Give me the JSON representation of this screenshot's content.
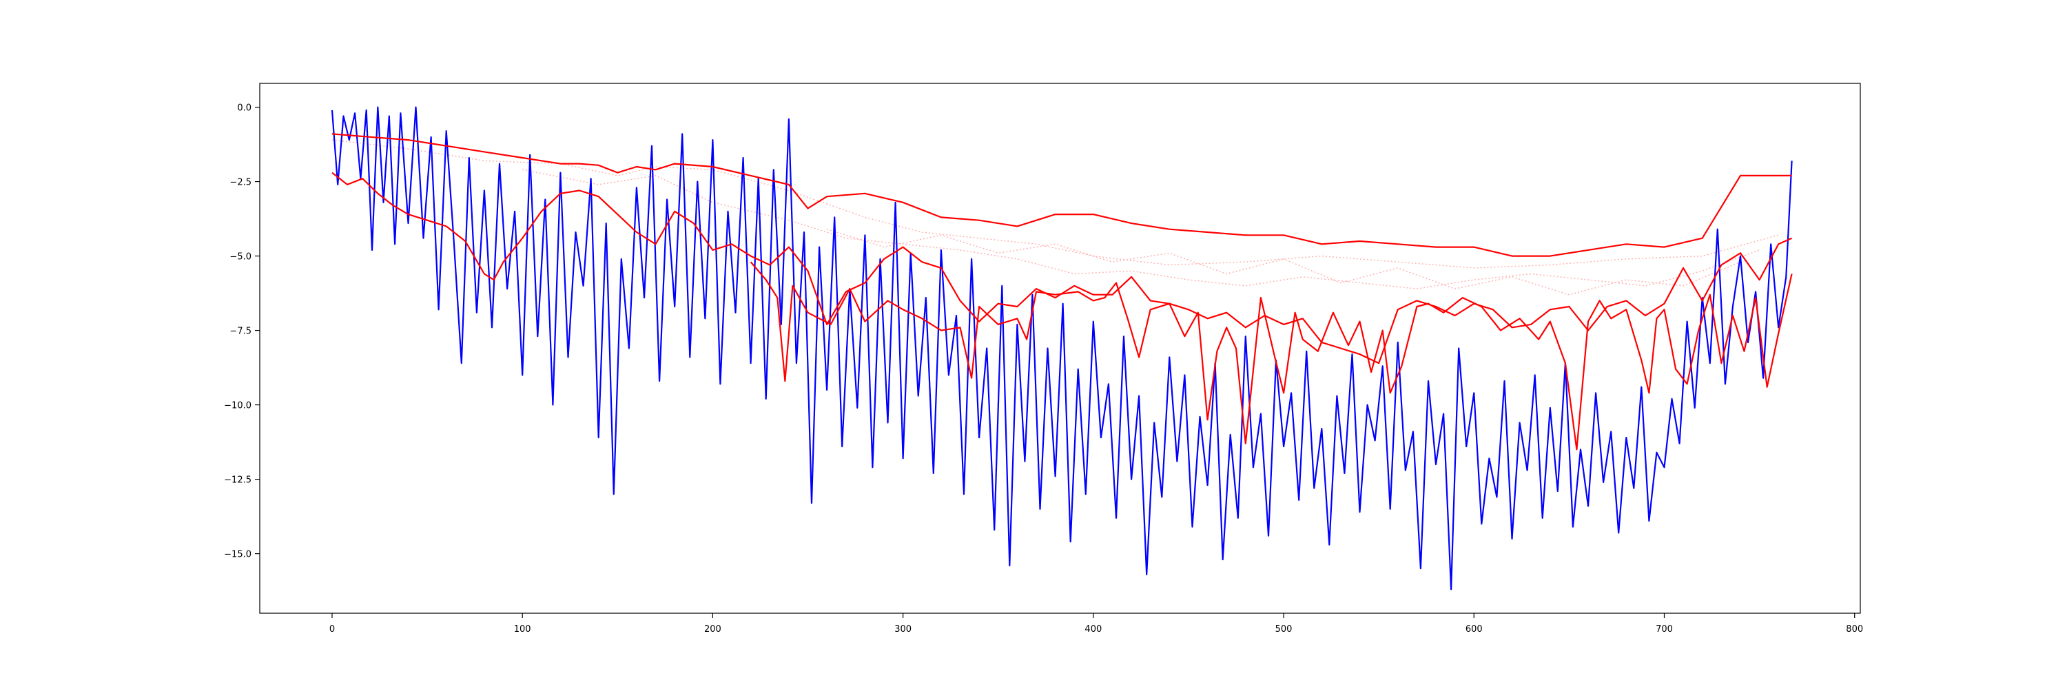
{
  "chart_data": {
    "type": "line",
    "title": "",
    "xlabel": "",
    "ylabel": "",
    "xlim": [
      -38,
      803
    ],
    "ylim": [
      -17.0,
      0.8
    ],
    "grid": false,
    "legend": "none",
    "x_ticks": [
      0,
      100,
      200,
      300,
      400,
      500,
      600,
      700,
      800
    ],
    "x_tick_labels": [
      "0",
      "100",
      "200",
      "300",
      "400",
      "500",
      "600",
      "700",
      "800"
    ],
    "y_ticks": [
      0.0,
      -2.5,
      -5.0,
      -7.5,
      -10.0,
      -12.5,
      -15.0
    ],
    "y_tick_labels": [
      "0.0",
      "−2.5",
      "−5.0",
      "−7.5",
      "−10.0",
      "−12.5",
      "−15.0"
    ],
    "series": [
      {
        "color": "#0000ff",
        "style": "solid",
        "x": [
          0,
          3,
          6,
          9,
          12,
          15,
          18,
          21,
          24,
          27,
          30,
          33,
          36,
          40,
          44,
          48,
          52,
          56,
          60,
          64,
          68,
          72,
          76,
          80,
          84,
          88,
          92,
          96,
          100,
          104,
          108,
          112,
          116,
          120,
          124,
          128,
          132,
          136,
          140,
          144,
          148,
          152,
          156,
          160,
          164,
          168,
          172,
          176,
          180,
          184,
          188,
          192,
          196,
          200,
          204,
          208,
          212,
          216,
          220,
          224,
          228,
          232,
          236,
          240,
          244,
          248,
          252,
          256,
          260,
          264,
          268,
          272,
          276,
          280,
          284,
          288,
          292,
          296,
          300,
          304,
          308,
          312,
          316,
          320,
          324,
          328,
          332,
          336,
          340,
          344,
          348,
          352,
          356,
          360,
          364,
          368,
          372,
          376,
          380,
          384,
          388,
          392,
          396,
          400,
          404,
          408,
          412,
          416,
          420,
          424,
          428,
          432,
          436,
          440,
          444,
          448,
          452,
          456,
          460,
          464,
          468,
          472,
          476,
          480,
          484,
          488,
          492,
          496,
          500,
          504,
          508,
          512,
          516,
          520,
          524,
          528,
          532,
          536,
          540,
          544,
          548,
          552,
          556,
          560,
          564,
          568,
          572,
          576,
          580,
          584,
          588,
          592,
          596,
          600,
          604,
          608,
          612,
          616,
          620,
          624,
          628,
          632,
          636,
          640,
          644,
          648,
          652,
          656,
          660,
          664,
          668,
          672,
          676,
          680,
          684,
          688,
          692,
          696,
          700,
          704,
          708,
          712,
          716,
          720,
          724,
          728,
          732,
          736,
          740,
          744,
          748,
          752,
          756,
          760,
          764,
          767
        ],
        "y": [
          -0.1,
          -2.6,
          -0.3,
          -1.1,
          -0.2,
          -2.4,
          -0.1,
          -4.8,
          0.0,
          -3.2,
          -0.3,
          -4.6,
          -0.2,
          -3.9,
          0.0,
          -4.4,
          -1.0,
          -6.8,
          -0.8,
          -4.5,
          -8.6,
          -1.7,
          -6.9,
          -2.8,
          -7.4,
          -1.9,
          -6.1,
          -3.5,
          -9.0,
          -1.6,
          -7.7,
          -3.1,
          -10.0,
          -2.2,
          -8.4,
          -4.2,
          -6.0,
          -2.4,
          -11.1,
          -3.9,
          -13.0,
          -5.1,
          -8.1,
          -2.7,
          -6.4,
          -1.3,
          -9.2,
          -3.1,
          -6.7,
          -0.9,
          -8.4,
          -2.5,
          -7.1,
          -1.1,
          -9.3,
          -3.5,
          -6.9,
          -1.7,
          -8.6,
          -2.4,
          -9.8,
          -2.1,
          -7.3,
          -0.4,
          -8.6,
          -4.2,
          -13.3,
          -4.7,
          -9.5,
          -3.7,
          -11.4,
          -6.1,
          -10.1,
          -4.3,
          -12.1,
          -5.1,
          -10.6,
          -3.2,
          -11.8,
          -4.9,
          -9.7,
          -6.4,
          -12.3,
          -4.8,
          -9.0,
          -7.0,
          -13.0,
          -5.1,
          -11.1,
          -8.1,
          -14.2,
          -6.0,
          -15.4,
          -7.3,
          -11.9,
          -6.3,
          -13.5,
          -8.1,
          -12.4,
          -6.6,
          -14.6,
          -8.8,
          -13.0,
          -7.2,
          -11.1,
          -9.3,
          -13.8,
          -7.7,
          -12.5,
          -9.7,
          -15.7,
          -10.6,
          -13.1,
          -8.4,
          -11.9,
          -9.0,
          -14.1,
          -10.4,
          -12.7,
          -8.6,
          -15.2,
          -11.0,
          -13.8,
          -7.7,
          -12.1,
          -10.3,
          -14.4,
          -8.5,
          -11.4,
          -9.6,
          -13.2,
          -8.2,
          -12.8,
          -10.8,
          -14.7,
          -9.7,
          -12.3,
          -8.3,
          -13.6,
          -10.0,
          -11.2,
          -8.7,
          -13.5,
          -7.9,
          -12.2,
          -10.9,
          -15.5,
          -9.2,
          -12.0,
          -10.3,
          -16.2,
          -8.1,
          -11.4,
          -9.6,
          -14.0,
          -11.8,
          -13.1,
          -9.2,
          -14.5,
          -10.6,
          -12.2,
          -9.0,
          -13.8,
          -10.1,
          -12.9,
          -8.6,
          -14.1,
          -11.5,
          -13.4,
          -9.6,
          -12.6,
          -10.9,
          -14.3,
          -11.1,
          -12.8,
          -9.4,
          -13.9,
          -11.6,
          -12.1,
          -9.8,
          -11.3,
          -7.2,
          -10.1,
          -6.4,
          -8.6,
          -4.1,
          -9.3,
          -6.7,
          -5.0,
          -7.9,
          -6.2,
          -9.1,
          -4.6,
          -7.4,
          -5.7,
          -1.8
        ]
      },
      {
        "color": "#ff0000",
        "style": "solid",
        "x": [
          0,
          20,
          40,
          60,
          80,
          100,
          120,
          130,
          140,
          150,
          160,
          170,
          180,
          200,
          220,
          240,
          250,
          260,
          280,
          300,
          320,
          340,
          360,
          380,
          400,
          420,
          440,
          460,
          480,
          500,
          520,
          540,
          560,
          580,
          600,
          620,
          640,
          660,
          680,
          700,
          720,
          740,
          767
        ],
        "y": [
          -0.9,
          -1.0,
          -1.1,
          -1.3,
          -1.5,
          -1.7,
          -1.9,
          -1.9,
          -1.95,
          -2.2,
          -2.0,
          -2.1,
          -1.9,
          -2.0,
          -2.3,
          -2.6,
          -3.4,
          -3.0,
          -2.9,
          -3.2,
          -3.7,
          -3.8,
          -4.0,
          -3.6,
          -3.6,
          -3.9,
          -4.1,
          -4.2,
          -4.3,
          -4.3,
          -4.6,
          -4.5,
          -4.6,
          -4.7,
          -4.7,
          -5.0,
          -5.0,
          -4.8,
          -4.6,
          -4.7,
          -4.4,
          -2.3,
          -2.3
        ]
      },
      {
        "color": "#ff0000",
        "style": "solid",
        "x": [
          0,
          8,
          16,
          24,
          32,
          40,
          50,
          60,
          70,
          80,
          85,
          90,
          100,
          110,
          120,
          130,
          140,
          150,
          160,
          170,
          180,
          190,
          200,
          210,
          220,
          230,
          240,
          250,
          260,
          270,
          280,
          290,
          300,
          310,
          320,
          330,
          340,
          350,
          360,
          370,
          380,
          390,
          400,
          410,
          420,
          430,
          440,
          450,
          460,
          470,
          480,
          490,
          500,
          510,
          520,
          530,
          540,
          550,
          560,
          570,
          580,
          590,
          600,
          610,
          620,
          630,
          640,
          650,
          660,
          670,
          680,
          690,
          700,
          710,
          720,
          730,
          740,
          750,
          760,
          767
        ],
        "y": [
          -2.2,
          -2.6,
          -2.4,
          -2.9,
          -3.3,
          -3.6,
          -3.8,
          -4.0,
          -4.5,
          -5.6,
          -5.8,
          -5.2,
          -4.4,
          -3.5,
          -2.9,
          -2.8,
          -3.0,
          -3.6,
          -4.2,
          -4.6,
          -3.5,
          -3.9,
          -4.8,
          -4.6,
          -5.0,
          -5.3,
          -4.7,
          -5.5,
          -7.3,
          -6.2,
          -5.9,
          -5.1,
          -4.7,
          -5.2,
          -5.4,
          -6.5,
          -7.2,
          -6.6,
          -6.7,
          -6.1,
          -6.4,
          -6.0,
          -6.3,
          -6.3,
          -5.7,
          -6.5,
          -6.6,
          -6.8,
          -7.1,
          -6.9,
          -7.4,
          -7.0,
          -7.3,
          -7.1,
          -7.9,
          -8.1,
          -8.3,
          -8.6,
          -6.8,
          -6.5,
          -6.7,
          -7.0,
          -6.6,
          -6.8,
          -7.4,
          -7.3,
          -6.8,
          -6.7,
          -7.5,
          -6.7,
          -6.5,
          -7.0,
          -6.6,
          -5.4,
          -6.5,
          -5.3,
          -4.9,
          -5.8,
          -4.6,
          -4.4
        ]
      },
      {
        "color": "#ff0000",
        "style": "solid",
        "x": [
          220,
          228,
          234,
          238,
          242,
          250,
          262,
          272,
          280,
          292,
          300,
          310,
          320,
          330,
          336,
          340,
          350,
          360,
          365,
          370,
          380,
          392,
          400,
          406,
          412,
          418,
          424,
          430,
          440,
          448,
          455,
          460,
          465,
          470,
          475,
          480,
          488,
          495,
          500,
          506,
          510,
          518,
          526,
          534,
          540,
          546,
          552,
          556,
          562,
          570,
          576,
          584,
          594,
          604,
          614,
          624,
          634,
          640,
          648,
          654,
          660,
          666,
          672,
          680,
          688,
          692,
          696,
          700,
          706,
          712,
          718,
          724,
          730,
          736,
          742,
          748,
          754,
          760,
          767
        ],
        "y": [
          -5.2,
          -5.8,
          -6.4,
          -9.2,
          -6.0,
          -6.9,
          -7.3,
          -6.1,
          -7.2,
          -6.5,
          -6.8,
          -7.1,
          -7.5,
          -7.4,
          -9.1,
          -6.7,
          -7.3,
          -7.1,
          -7.8,
          -6.2,
          -6.3,
          -6.2,
          -6.5,
          -6.4,
          -5.9,
          -7.1,
          -8.4,
          -6.8,
          -6.6,
          -7.7,
          -6.9,
          -10.5,
          -8.2,
          -7.4,
          -8.1,
          -11.3,
          -6.4,
          -8.3,
          -9.6,
          -6.9,
          -7.8,
          -8.2,
          -6.9,
          -8.0,
          -7.2,
          -8.9,
          -7.5,
          -9.6,
          -8.7,
          -6.7,
          -6.6,
          -6.9,
          -6.4,
          -6.7,
          -7.5,
          -7.1,
          -7.8,
          -7.2,
          -8.6,
          -11.5,
          -7.2,
          -6.5,
          -7.1,
          -6.8,
          -8.5,
          -9.6,
          -7.1,
          -6.8,
          -8.8,
          -9.3,
          -7.5,
          -6.3,
          -8.6,
          -7.0,
          -8.2,
          -6.4,
          -9.4,
          -7.6,
          -5.6
        ]
      },
      {
        "color": "#ffb3b3",
        "style": "dotted",
        "x": [
          0,
          40,
          80,
          120,
          150,
          170,
          200,
          240,
          280,
          310,
          340,
          370,
          400,
          440,
          480,
          520,
          560,
          600,
          640,
          680,
          720,
          760
        ],
        "y": [
          -1.1,
          -1.4,
          -1.8,
          -1.9,
          -2.3,
          -2.0,
          -2.1,
          -2.8,
          -3.7,
          -4.2,
          -4.4,
          -4.6,
          -5.0,
          -5.3,
          -5.2,
          -5.0,
          -5.2,
          -5.4,
          -5.3,
          -5.1,
          -5.0,
          -4.3
        ]
      },
      {
        "color": "#ffb3b3",
        "style": "dotted",
        "x": [
          100,
          140,
          170,
          200,
          240,
          270,
          300,
          330,
          360,
          390,
          420,
          450,
          480,
          510,
          540,
          570,
          600,
          630,
          660,
          690,
          720,
          750
        ],
        "y": [
          -2.1,
          -2.6,
          -2.3,
          -3.2,
          -3.8,
          -4.4,
          -4.6,
          -4.8,
          -5.1,
          -5.6,
          -5.5,
          -5.8,
          -6.0,
          -5.7,
          -5.9,
          -6.1,
          -5.8,
          -5.6,
          -5.8,
          -6.0,
          -5.5,
          -4.8
        ]
      },
      {
        "color": "#ffb3b3",
        "style": "dotted",
        "x": [
          260,
          290,
          320,
          350,
          380,
          410,
          440,
          470,
          500,
          530,
          560,
          590,
          620,
          650,
          680,
          710,
          740
        ],
        "y": [
          -4.1,
          -4.7,
          -4.3,
          -4.9,
          -4.6,
          -5.2,
          -4.9,
          -5.6,
          -5.1,
          -5.9,
          -5.4,
          -6.1,
          -5.7,
          -6.3,
          -5.8,
          -6.0,
          -5.2
        ]
      }
    ]
  }
}
